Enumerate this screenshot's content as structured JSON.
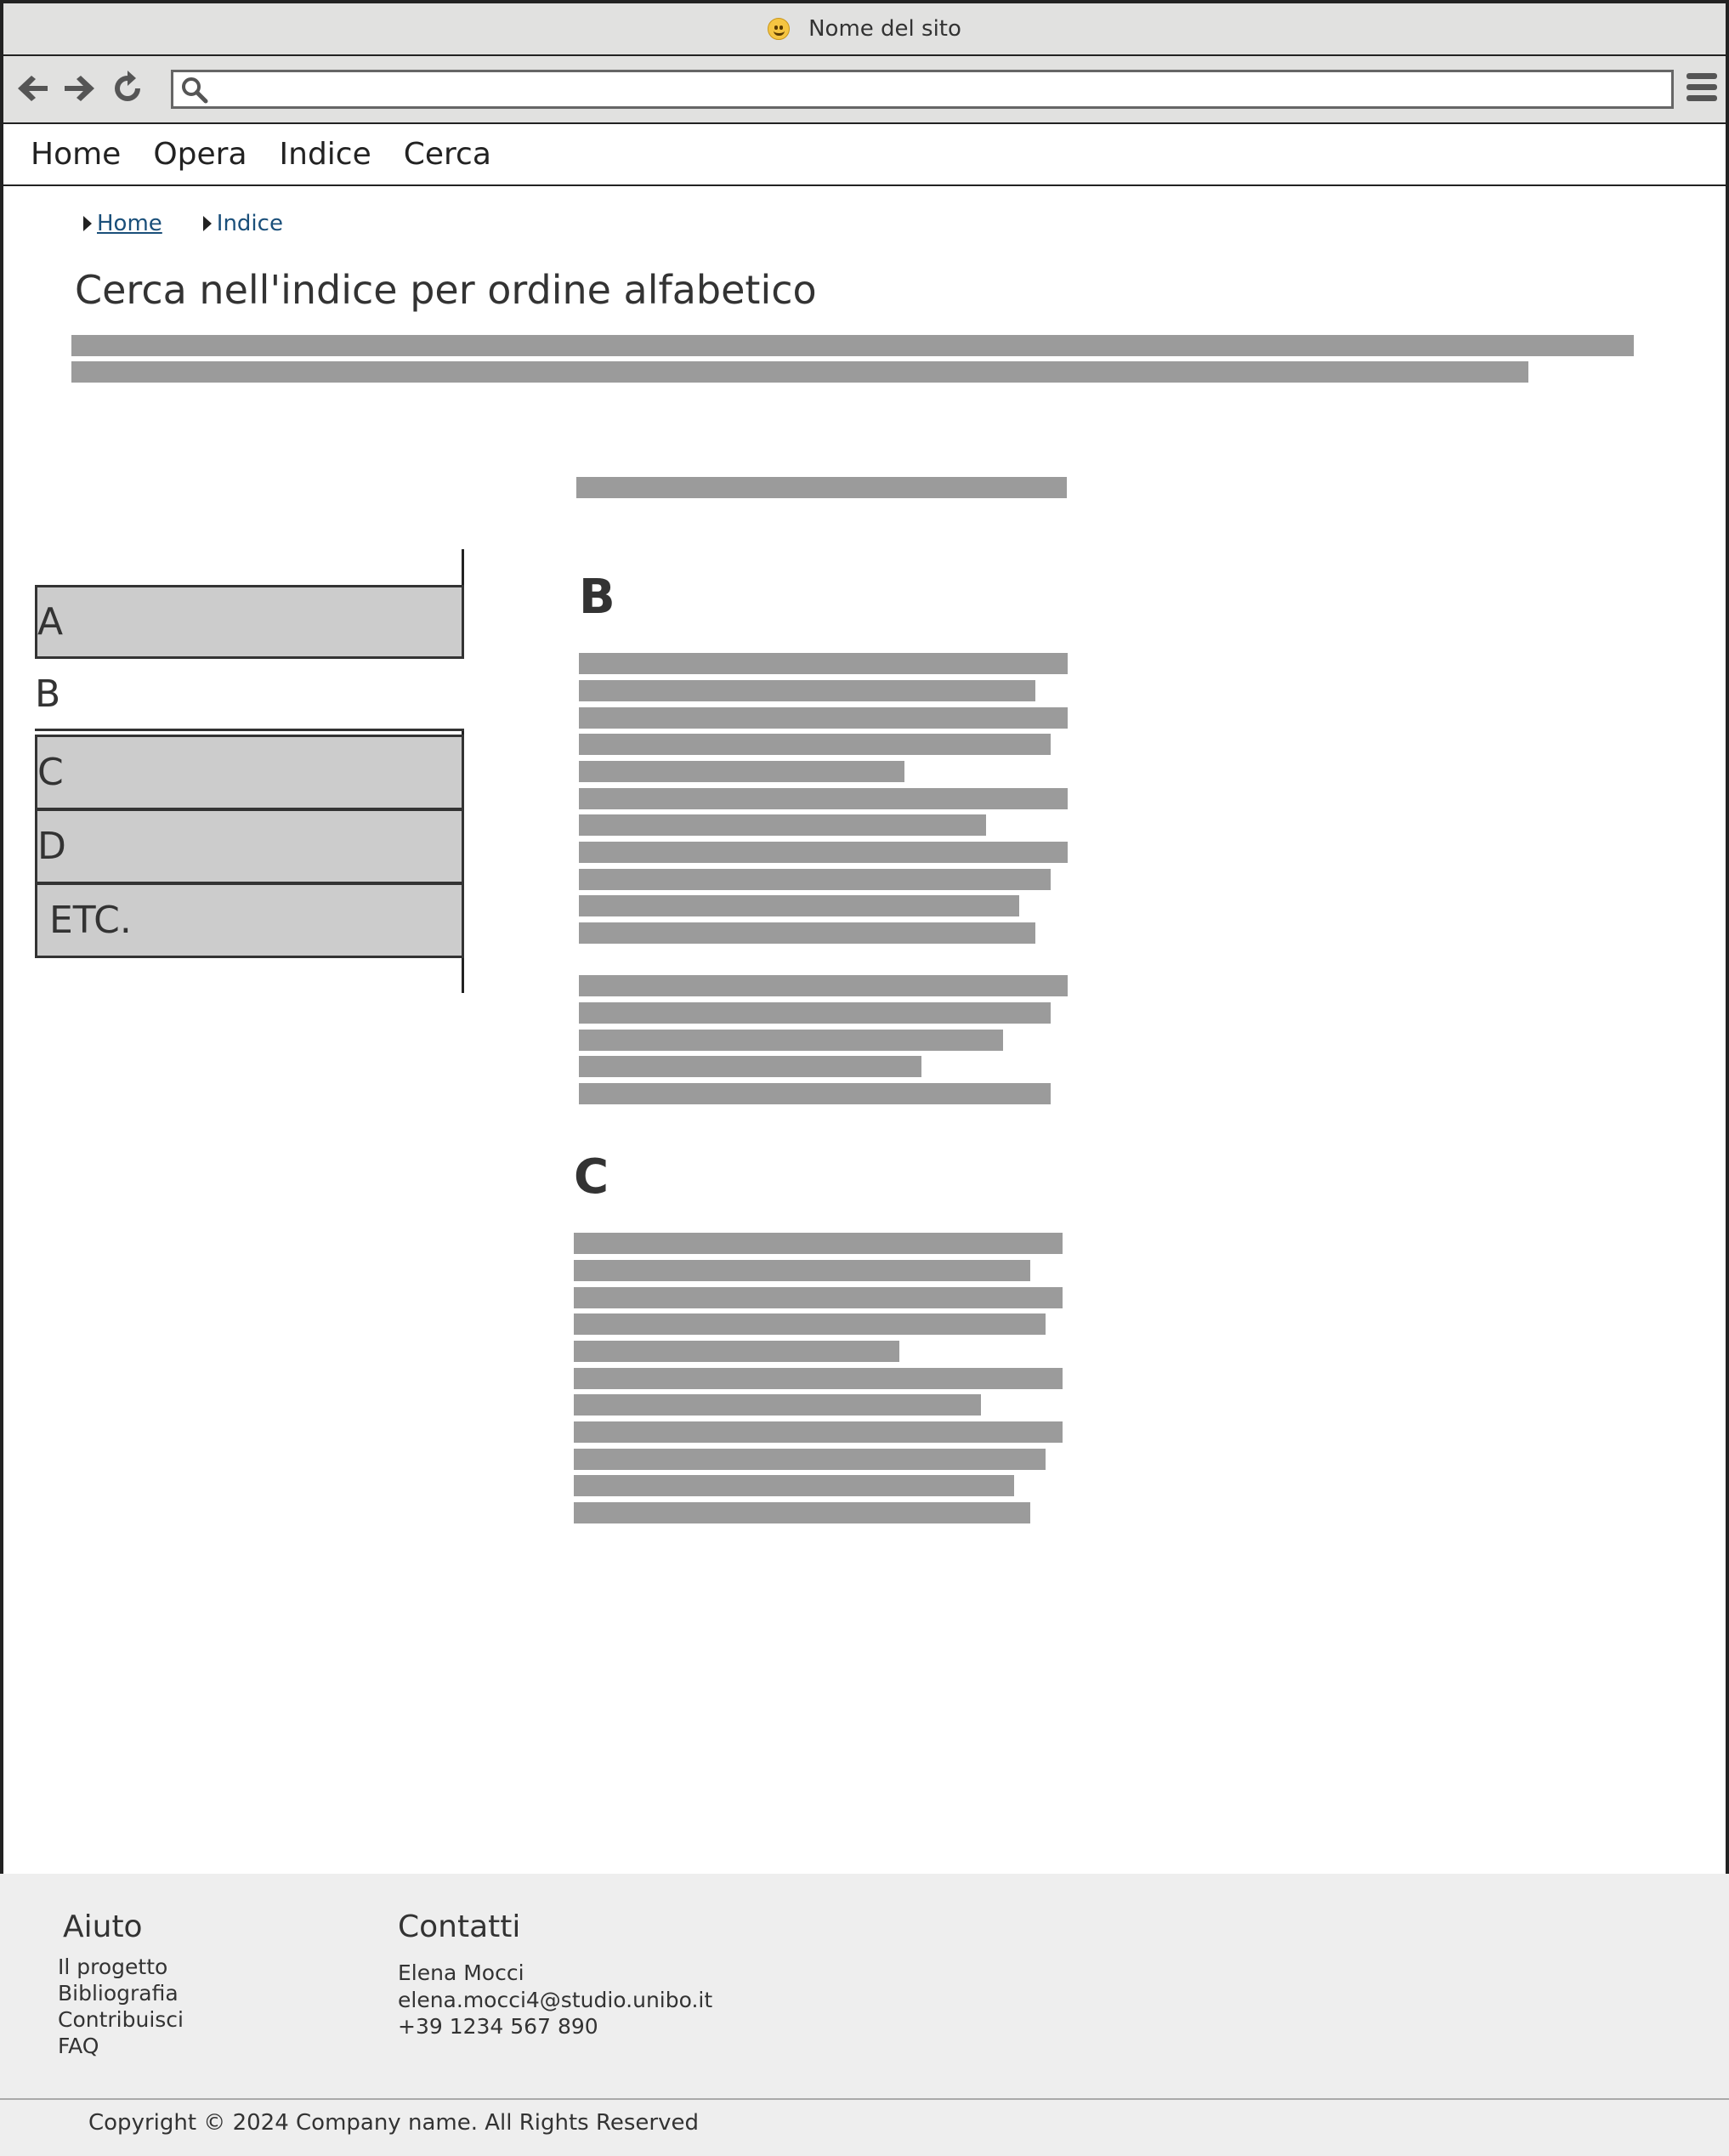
{
  "window": {
    "title": "Nome del sito",
    "title_icon": "smiley-emoji-icon"
  },
  "toolbar": {
    "back_icon": "back-arrow-icon",
    "forward_icon": "forward-arrow-icon",
    "reload_icon": "reload-icon",
    "search_icon": "search-icon",
    "address_value": "",
    "menu_icon": "hamburger-menu-icon"
  },
  "nav": {
    "items": [
      "Home",
      "Opera",
      "Indice",
      "Cerca"
    ]
  },
  "breadcrumb": [
    "Home",
    "Indice"
  ],
  "page_title": "Cerca nell'indice per ordine alfabetico",
  "letter_tabs": [
    {
      "label": "A",
      "active": false
    },
    {
      "label": "B",
      "active": true
    },
    {
      "label": "C",
      "active": false
    },
    {
      "label": "D",
      "active": false
    },
    {
      "label": "ETC.",
      "active": false
    }
  ],
  "sections": [
    "B",
    "C"
  ],
  "footer": {
    "aiuto_heading": "Aiuto",
    "aiuto_links": [
      "Il progetto",
      "Bibliografia",
      "Contribuisci",
      "FAQ"
    ],
    "contatti_heading": "Contatti",
    "contact_name": "Elena Mocci",
    "contact_email": "elena.mocci4@studio.unibo.it",
    "contact_phone": "+39 1234 567 890",
    "copyright": "Copyright © 2024 Company name. All Rights Reserved"
  },
  "colors": {
    "placeholder_bar": "#9b9b9b",
    "tab_inactive": "#cccccc",
    "chrome": "#e1e1e0",
    "footer_bg": "#eeeeee",
    "link": "#1a4f7a"
  }
}
